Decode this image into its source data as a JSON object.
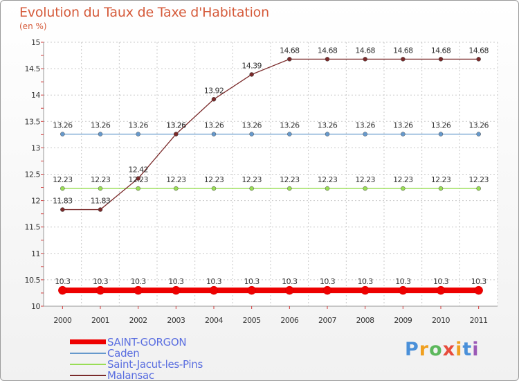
{
  "chart_data": {
    "type": "line",
    "title": "Evolution du Taux de Taxe d'Habitation",
    "subtitle": "(en %)",
    "categories": [
      "2000",
      "2001",
      "2002",
      "2003",
      "2004",
      "2005",
      "2006",
      "2007",
      "2008",
      "2009",
      "2010",
      "2011"
    ],
    "ylim": [
      10,
      15
    ],
    "yticks": [
      "10",
      "10.5",
      "11",
      "11.5",
      "12",
      "12.5",
      "13",
      "13.5",
      "14",
      "14.5",
      "15"
    ],
    "ytick_values": [
      10,
      10.5,
      11,
      11.5,
      12,
      12.5,
      13,
      13.5,
      14,
      14.5,
      15
    ],
    "series": [
      {
        "name": "SAINT-GORGON",
        "color": "#ee0000",
        "values": [
          10.3,
          10.3,
          10.3,
          10.3,
          10.3,
          10.3,
          10.3,
          10.3,
          10.3,
          10.3,
          10.3,
          10.3
        ],
        "labels": [
          "10.3",
          "10.3",
          "10.3",
          "10.3",
          "10.3",
          "10.3",
          "10.3",
          "10.3",
          "10.3",
          "10.3",
          "10.3",
          "10.3"
        ]
      },
      {
        "name": "Caden",
        "color": "#6699cc",
        "values": [
          13.26,
          13.26,
          13.26,
          13.26,
          13.26,
          13.26,
          13.26,
          13.26,
          13.26,
          13.26,
          13.26,
          13.26
        ],
        "labels": [
          "13.26",
          "13.26",
          "13.26",
          "13.26",
          "13.26",
          "13.26",
          "13.26",
          "13.26",
          "13.26",
          "13.26",
          "13.26",
          "13.26"
        ]
      },
      {
        "name": "Saint-Jacut-les-Pins",
        "color": "#99dd55",
        "values": [
          12.23,
          12.23,
          12.23,
          12.23,
          12.23,
          12.23,
          12.23,
          12.23,
          12.23,
          12.23,
          12.23,
          12.23
        ],
        "labels": [
          "12.23",
          "12.23",
          "12.23",
          "12.23",
          "12.23",
          "12.23",
          "12.23",
          "12.23",
          "12.23",
          "12.23",
          "12.23",
          "12.23"
        ]
      },
      {
        "name": "Malansac",
        "color": "#7a2a2a",
        "values": [
          11.83,
          11.83,
          12.42,
          13.26,
          13.92,
          14.39,
          14.68,
          14.68,
          14.68,
          14.68,
          14.68,
          14.68
        ],
        "labels": [
          "11.83",
          "11.83",
          "12.42",
          "13.26",
          "13.92",
          "14.39",
          "14.68",
          "14.68",
          "14.68",
          "14.68",
          "14.68",
          "14.68"
        ]
      }
    ]
  },
  "brand": {
    "letters": [
      "P",
      "r",
      "o",
      "x",
      "i",
      "t",
      "i"
    ],
    "colors": [
      "#4a90d9",
      "#f0a020",
      "#5cb85c",
      "#e74c3c",
      "#f0a020",
      "#4a90d9",
      "#9b59b6"
    ]
  }
}
